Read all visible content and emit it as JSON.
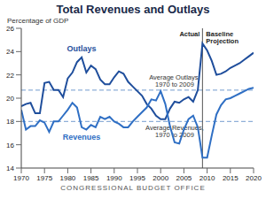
{
  "chart_data": {
    "type": "line",
    "title": "Total Revenues and Outlays",
    "subtitle": "Percentage of GDP",
    "source": "CONGRESSIONAL BUDGET OFFICE",
    "x": [
      1970,
      1971,
      1972,
      1973,
      1974,
      1975,
      1976,
      1977,
      1978,
      1979,
      1980,
      1981,
      1982,
      1983,
      1984,
      1985,
      1986,
      1987,
      1988,
      1989,
      1990,
      1991,
      1992,
      1993,
      1994,
      1995,
      1996,
      1997,
      1998,
      1999,
      2000,
      2001,
      2002,
      2003,
      2004,
      2005,
      2006,
      2007,
      2008,
      2009,
      2010,
      2011,
      2012,
      2013,
      2014,
      2015,
      2016,
      2017,
      2018,
      2019,
      2020
    ],
    "series": [
      {
        "name": "Outlays",
        "color": "#1f4e9c",
        "values": [
          19.3,
          19.5,
          19.6,
          18.7,
          18.7,
          21.3,
          21.4,
          20.7,
          20.7,
          20.1,
          21.7,
          22.2,
          23.1,
          23.5,
          22.2,
          22.8,
          22.5,
          21.6,
          21.2,
          21.2,
          21.8,
          22.3,
          22.1,
          21.4,
          21.0,
          20.6,
          20.2,
          19.5,
          19.1,
          18.5,
          18.2,
          18.2,
          19.1,
          19.7,
          19.6,
          19.9,
          20.1,
          19.7,
          20.7,
          24.7,
          24.1,
          23.2,
          22.0,
          22.1,
          22.3,
          22.6,
          22.8,
          23.0,
          23.3,
          23.6,
          23.9
        ]
      },
      {
        "name": "Revenues",
        "color": "#2f6fc4",
        "values": [
          19.0,
          17.3,
          17.6,
          17.6,
          18.1,
          17.9,
          17.1,
          18.0,
          18.0,
          18.5,
          19.0,
          19.6,
          19.2,
          17.5,
          17.3,
          17.7,
          17.5,
          18.4,
          18.2,
          18.4,
          18.0,
          17.8,
          17.5,
          17.5,
          18.0,
          18.4,
          18.8,
          19.2,
          19.9,
          19.8,
          20.6,
          19.5,
          17.6,
          16.2,
          16.1,
          17.3,
          18.2,
          18.5,
          17.5,
          14.9,
          14.9,
          16.8,
          18.6,
          19.4,
          19.9,
          20.0,
          20.2,
          20.4,
          20.6,
          20.8,
          20.9
        ]
      }
    ],
    "reference_lines": [
      {
        "label": "Average Outlays, 1970 to 2009",
        "value": 20.7,
        "color": "#8fb0d8"
      },
      {
        "label": "Average Revenues, 1970 to 2009",
        "value": 18.0,
        "color": "#8fb0d8"
      }
    ],
    "divider": {
      "x": 2009,
      "labels": [
        "Actual",
        "Baseline Projection"
      ]
    },
    "xlim": [
      1970,
      2020
    ],
    "xticks": [
      1970,
      1975,
      1980,
      1985,
      1990,
      1995,
      2000,
      2005,
      2010,
      2015,
      2020
    ],
    "ylim": [
      14,
      26
    ],
    "yticks": [
      14,
      16,
      18,
      20,
      22,
      24,
      26
    ],
    "grid": false
  }
}
